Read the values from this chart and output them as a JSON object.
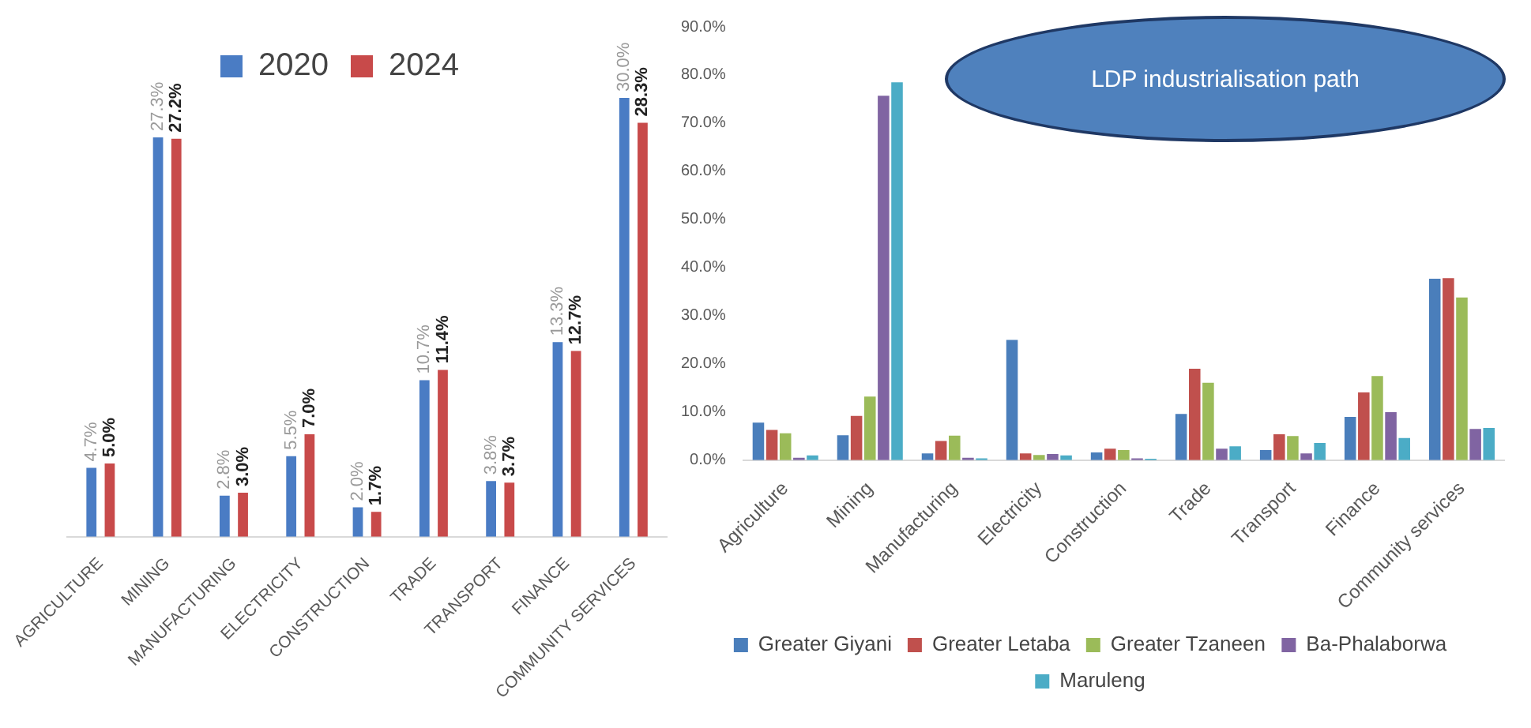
{
  "chart_data": [
    {
      "type": "bar",
      "categories": [
        "AGRICULTURE",
        "MINING",
        "MANUFACTURING",
        "ELECTRICITY",
        "CONSTRUCTION",
        "TRADE",
        "TRANSPORT",
        "FINANCE",
        "COMMUNITY SERVICES"
      ],
      "tick_labels": "x",
      "legend": "top",
      "series": [
        {
          "name": "2020",
          "color": "#4a7cc4",
          "values": [
            4.7,
            27.3,
            2.8,
            5.5,
            2.0,
            10.7,
            3.8,
            13.3,
            30.0
          ],
          "value_labels": [
            "4.7%",
            "27.3%",
            "2.8%",
            "5.5%",
            "2.0%",
            "10.7%",
            "3.8%",
            "13.3%",
            "30.0%"
          ]
        },
        {
          "name": "2024",
          "color": "#c84a4a",
          "values": [
            5.0,
            27.2,
            3.0,
            7.0,
            1.7,
            11.4,
            3.7,
            12.7,
            28.3
          ],
          "value_labels": [
            "5.0%",
            "27.2%",
            "3.0%",
            "7.0%",
            "1.7%",
            "11.4%",
            "3.7%",
            "12.7%",
            "28.3%"
          ]
        }
      ]
    },
    {
      "type": "bar",
      "categories": [
        "Agriculture",
        "Mining",
        "Manufacturing",
        "Electricity",
        "Construction",
        "Trade",
        "Transport",
        "Finance",
        "Community services"
      ],
      "ylim": [
        0,
        90
      ],
      "yticks": [
        {
          "value": 0,
          "label": "0.0%"
        },
        {
          "value": 10,
          "label": "10.0%"
        },
        {
          "value": 20,
          "label": "20.0%"
        },
        {
          "value": 30,
          "label": "30.0%"
        },
        {
          "value": 40,
          "label": "40.0%"
        },
        {
          "value": 50,
          "label": "50.0%"
        },
        {
          "value": 60,
          "label": "60.0%"
        },
        {
          "value": 70,
          "label": "70.0%"
        },
        {
          "value": 80,
          "label": "80.0%"
        },
        {
          "value": 90,
          "label": "90.0%"
        }
      ],
      "legend": "bottom",
      "annotations": [
        "LDP industrialisation path"
      ],
      "series": [
        {
          "name": "Greater Giyani",
          "color": "#4a7ebb",
          "values": [
            7.8,
            5.2,
            1.4,
            25.0,
            1.6,
            9.6,
            2.1,
            9.0,
            37.7
          ]
        },
        {
          "name": "Greater Letaba",
          "color": "#c0504d",
          "values": [
            6.3,
            9.2,
            4.0,
            1.4,
            2.4,
            19.0,
            5.4,
            14.1,
            37.8
          ]
        },
        {
          "name": "Greater Tzaneen",
          "color": "#9bbb59",
          "values": [
            5.6,
            13.2,
            5.1,
            1.1,
            2.1,
            16.1,
            5.0,
            17.5,
            33.8
          ]
        },
        {
          "name": "Ba-Phalaborwa",
          "color": "#8064a2",
          "values": [
            0.5,
            75.7,
            0.5,
            1.3,
            0.4,
            2.4,
            1.4,
            10.0,
            6.5
          ]
        },
        {
          "name": "Maruleng",
          "color": "#4bacc6",
          "values": [
            1.0,
            78.5,
            0.4,
            1.0,
            0.3,
            2.9,
            3.6,
            4.6,
            6.7
          ]
        }
      ]
    }
  ]
}
